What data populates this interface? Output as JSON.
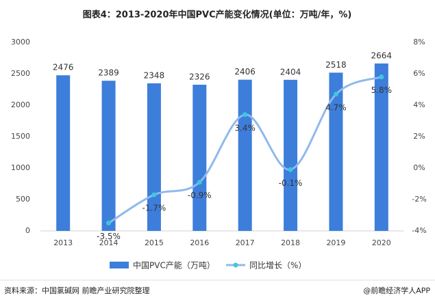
{
  "chart_data": {
    "type": "bar_line",
    "title": "图表4：2013-2020年中国PVC产能变化情况(单位：万吨/年，%)",
    "categories": [
      "2013",
      "2014",
      "2015",
      "2016",
      "2017",
      "2018",
      "2019",
      "2020"
    ],
    "series": [
      {
        "name": "中国PVC产能（万吨）",
        "type": "bar",
        "color": "#3d7edb",
        "values": [
          2476,
          2389,
          2348,
          2326,
          2406,
          2404,
          2518,
          2664
        ]
      },
      {
        "name": "同比增长（%）",
        "type": "line",
        "axis": "y2",
        "color": "#8fb9ec",
        "marker_color": "#3cc8da",
        "values": [
          null,
          -3.5,
          -1.7,
          -0.9,
          3.4,
          -0.1,
          4.7,
          5.8
        ],
        "value_labels": [
          null,
          "-3.5%",
          "-1.7%",
          "-0.9%",
          "3.4%",
          "-0.1%",
          "4.7%",
          "5.8%"
        ]
      }
    ],
    "ylim": [
      0,
      3000
    ],
    "yticks": [
      0,
      500,
      1000,
      1500,
      2000,
      2500,
      3000
    ],
    "y2lim": [
      -4,
      8
    ],
    "y2ticks": [
      {
        "value": -4,
        "label": "-4%"
      },
      {
        "value": -2,
        "label": "-2%"
      },
      {
        "value": 0,
        "label": "0%"
      },
      {
        "value": 2,
        "label": "2%"
      },
      {
        "value": 4,
        "label": "4%"
      },
      {
        "value": 6,
        "label": "6%"
      },
      {
        "value": 8,
        "label": "8%"
      }
    ],
    "grid": false,
    "legend": "bottom"
  },
  "footer": {
    "source": "资料来源：中国氯碱网 前瞻产业研究院整理",
    "credit": "@前瞻经济学人APP"
  }
}
